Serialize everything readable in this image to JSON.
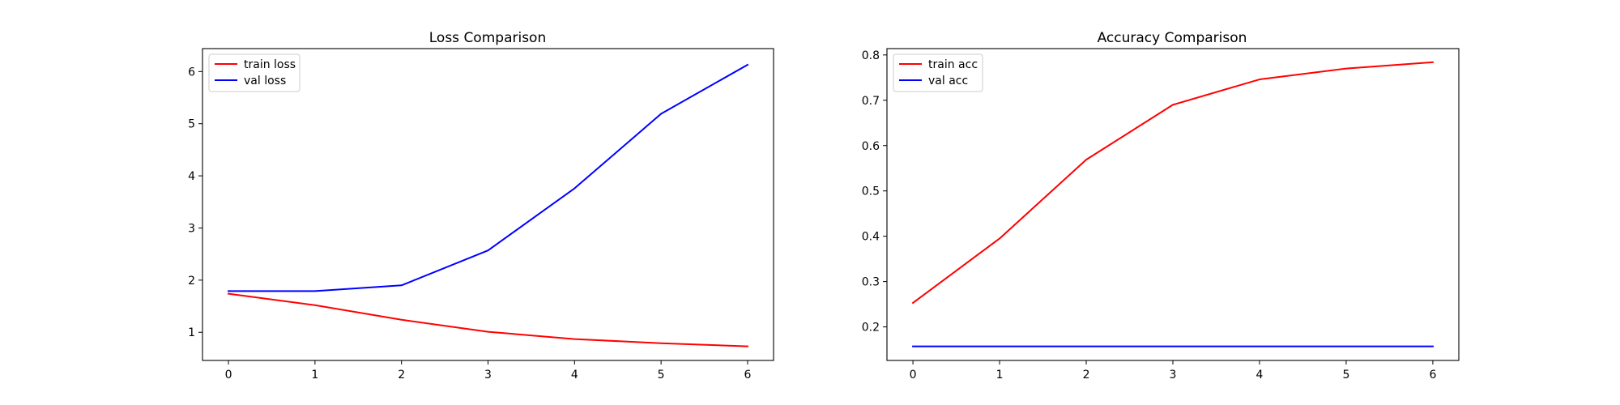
{
  "chart_data": [
    {
      "type": "line",
      "title": "Loss Comparison",
      "xlabel": "",
      "ylabel": "",
      "x": [
        0,
        1,
        2,
        3,
        4,
        5,
        6
      ],
      "xlim": [
        -0.3,
        6.3
      ],
      "ylim": [
        0.46,
        6.44
      ],
      "xticks": [
        0,
        1,
        2,
        3,
        4,
        5,
        6
      ],
      "yticks": [
        1,
        2,
        3,
        4,
        5,
        6
      ],
      "grid": false,
      "legend_position": "top-left",
      "series": [
        {
          "name": "train loss",
          "color": "#ff0000",
          "values": [
            1.74,
            1.52,
            1.24,
            1.01,
            0.87,
            0.79,
            0.73
          ]
        },
        {
          "name": "val loss",
          "color": "#0000ff",
          "values": [
            1.79,
            1.79,
            1.9,
            2.57,
            3.76,
            5.19,
            6.13
          ]
        }
      ]
    },
    {
      "type": "line",
      "title": "Accuracy Comparison",
      "xlabel": "",
      "ylabel": "",
      "x": [
        0,
        1,
        2,
        3,
        4,
        5,
        6
      ],
      "xlim": [
        -0.3,
        6.3
      ],
      "ylim": [
        0.126,
        0.814
      ],
      "xticks": [
        0,
        1,
        2,
        3,
        4,
        5,
        6
      ],
      "yticks": [
        0.2,
        0.3,
        0.4,
        0.5,
        0.6,
        0.7,
        0.8
      ],
      "grid": false,
      "legend_position": "top-left",
      "series": [
        {
          "name": "train acc",
          "color": "#ff0000",
          "values": [
            0.253,
            0.395,
            0.569,
            0.69,
            0.746,
            0.77,
            0.784
          ]
        },
        {
          "name": "val acc",
          "color": "#0000ff",
          "values": [
            0.157,
            0.157,
            0.157,
            0.157,
            0.157,
            0.157,
            0.157
          ]
        }
      ]
    }
  ]
}
